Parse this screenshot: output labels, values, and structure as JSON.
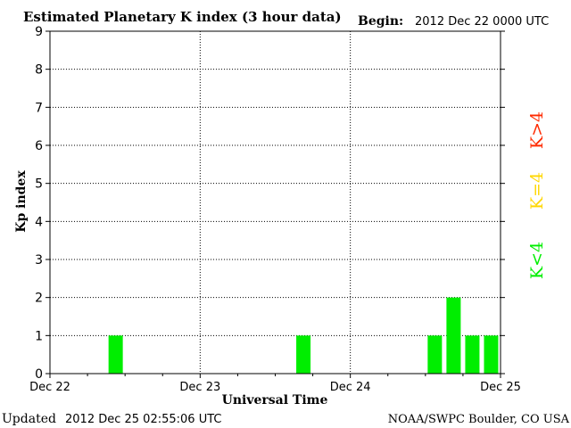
{
  "header": {
    "title": "Estimated Planetary K index (3 hour data)",
    "begin_label": "Begin:",
    "begin_value": "2012 Dec 22 0000 UTC"
  },
  "footer": {
    "updated_label": "Updated",
    "updated_value": "2012 Dec 25 02:55:06 UTC",
    "source": "NOAA/SWPC Boulder, CO USA"
  },
  "legend": [
    {
      "text": "K>4",
      "color": "#ff2a00"
    },
    {
      "text": "K=4",
      "color": "#ffd700"
    },
    {
      "text": "K<4",
      "color": "#00ee00"
    }
  ],
  "chart_data": {
    "type": "bar",
    "title": "Estimated Planetary K index (3 hour data)",
    "xlabel": "Universal Time",
    "ylabel": "Kp index",
    "ylim": [
      0,
      9
    ],
    "yticks": [
      0,
      1,
      2,
      3,
      4,
      5,
      6,
      7,
      8,
      9
    ],
    "xlim_days": [
      0,
      3
    ],
    "xticks": [
      "Dec 22",
      "Dec 23",
      "Dec 24",
      "Dec 25"
    ],
    "interval_hours": 3,
    "grid": true,
    "bar_color": "#00ee00",
    "bars": [
      {
        "start": "2012 Dec 22 0900 UTC",
        "kp": 1
      },
      {
        "start": "2012 Dec 23 1500 UTC",
        "kp": 1
      },
      {
        "start": "2012 Dec 24 1200 UTC",
        "kp": 1
      },
      {
        "start": "2012 Dec 24 1500 UTC",
        "kp": 2
      },
      {
        "start": "2012 Dec 24 1800 UTC",
        "kp": 1
      },
      {
        "start": "2012 Dec 24 2100 UTC",
        "kp": 1
      }
    ]
  }
}
